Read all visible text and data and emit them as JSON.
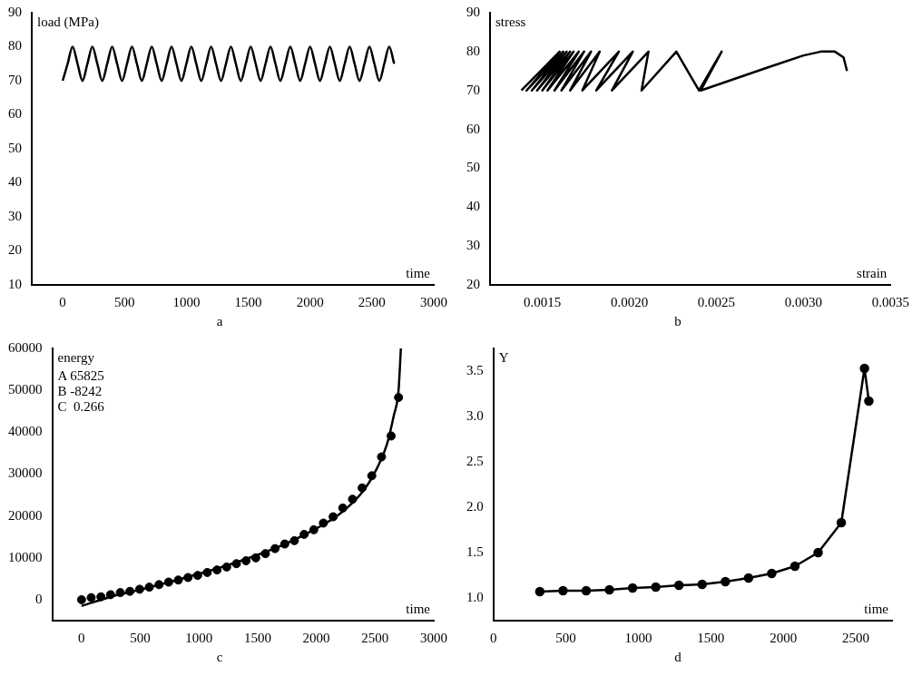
{
  "chart_data": [
    {
      "type": "line",
      "title": "a",
      "xlabel": "time",
      "ylabel": "load (MPa)",
      "color": "#000000",
      "x": [
        0,
        40,
        80,
        120,
        160,
        200,
        240,
        280,
        320,
        360,
        400,
        440,
        480,
        520,
        560,
        600,
        640,
        680,
        720,
        760,
        800,
        840,
        880,
        920,
        960,
        1000,
        1040,
        1080,
        1120,
        1160,
        1200,
        1240,
        1280,
        1320,
        1360,
        1400,
        1440,
        1480,
        1520,
        1560,
        1600,
        1640,
        1680,
        1720,
        1760,
        1800,
        1840,
        1880,
        1920,
        1960,
        2000,
        2040,
        2080,
        2120,
        2160,
        2200,
        2240,
        2280,
        2320,
        2360,
        2400,
        2440,
        2480,
        2520,
        2560,
        2600,
        2640,
        2680
      ],
      "values": [
        70,
        75,
        80,
        75,
        70,
        75,
        80,
        75,
        70,
        75,
        80,
        75,
        70,
        75,
        80,
        75,
        70,
        75,
        80,
        75,
        70,
        75,
        80,
        75,
        70,
        75,
        80,
        75,
        70,
        75,
        80,
        75,
        70,
        75,
        80,
        75,
        70,
        75,
        80,
        75,
        70,
        75,
        80,
        75,
        70,
        75,
        80,
        75,
        70,
        75,
        80,
        75,
        70,
        75,
        80,
        75,
        70,
        75,
        80,
        75,
        70,
        75,
        80,
        75,
        70,
        75,
        80,
        75
      ],
      "xlim": [
        -250,
        3000
      ],
      "xticks": [
        0,
        500,
        1000,
        1500,
        2000,
        2500,
        3000
      ],
      "ylim": [
        10,
        90
      ],
      "yticks": [
        10,
        20,
        30,
        40,
        50,
        60,
        70,
        80,
        90
      ]
    },
    {
      "type": "line",
      "title": "b",
      "xlabel": "strain",
      "ylabel": "stress",
      "color": "#000000",
      "x": [
        0.00138,
        0.0016,
        0.00141,
        0.00162,
        0.00144,
        0.00164,
        0.00147,
        0.00166,
        0.0015,
        0.00168,
        0.00153,
        0.00171,
        0.00157,
        0.00174,
        0.00161,
        0.00178,
        0.00166,
        0.00183,
        0.00173,
        0.00194,
        0.00181,
        0.00202,
        0.0019,
        0.00211,
        0.00207,
        0.00227,
        0.0024,
        0.00253,
        0.00241,
        0.0028,
        0.003,
        0.0031,
        0.00318,
        0.00323,
        0.00325
      ],
      "values": [
        70,
        80,
        70,
        80,
        70,
        80,
        70,
        80,
        70,
        80,
        70,
        80,
        70,
        80,
        70,
        80,
        70,
        80,
        70,
        80,
        70,
        80,
        70,
        80,
        70,
        80,
        70,
        80,
        70,
        76,
        79,
        80,
        80,
        78.5,
        75
      ],
      "xlim": [
        0.0012,
        0.0035
      ],
      "xticks": [
        {
          "value": 0.0015,
          "label": "0.0015"
        },
        {
          "value": 0.002,
          "label": "0.0020"
        },
        {
          "value": 0.0025,
          "label": "0.0025"
        },
        {
          "value": 0.003,
          "label": "0.0030"
        },
        {
          "value": 0.0035,
          "label": "0.0035"
        }
      ],
      "ylim": [
        20,
        90
      ],
      "yticks": [
        20,
        30,
        40,
        50,
        60,
        70,
        80,
        90
      ]
    },
    {
      "type": "scatter",
      "title": "c",
      "xlabel": "time",
      "ylabel": "energy",
      "annotations": [
        "A 65825",
        "B -8242",
        "C  0.266"
      ],
      "series": [
        {
          "marker": "circle",
          "color": "#000000",
          "x": [
            0,
            82,
            165,
            247,
            330,
            412,
            495,
            577,
            660,
            742,
            824,
            907,
            989,
            1071,
            1154,
            1236,
            1319,
            1401,
            1484,
            1566,
            1648,
            1731,
            1813,
            1896,
            1978,
            2060,
            2143,
            2225,
            2308,
            2390,
            2472,
            2555,
            2637,
            2700
          ],
          "values": [
            0,
            500,
            700,
            1200,
            1700,
            2000,
            2500,
            3000,
            3600,
            4200,
            4700,
            5300,
            5800,
            6500,
            7100,
            7800,
            8600,
            9300,
            10000,
            11000,
            12200,
            13300,
            14100,
            15600,
            16700,
            18300,
            19800,
            21900,
            24000,
            26700,
            29600,
            34100,
            39100,
            48300
          ]
        },
        {
          "type": "line",
          "color": "#000000",
          "x": [
            0,
            250,
            500,
            750,
            1000,
            1250,
            1500,
            1750,
            2000,
            2200,
            2400,
            2500,
            2600,
            2660,
            2700,
            2720
          ],
          "values": [
            -1500,
            700,
            2400,
            4200,
            6200,
            8300,
            10700,
            13500,
            17000,
            20500,
            26000,
            30500,
            37000,
            44000,
            50000,
            60000
          ]
        }
      ],
      "xlim": [
        -250,
        3000
      ],
      "xticks": [
        0,
        500,
        1000,
        1500,
        2000,
        2500,
        3000
      ],
      "ylim": [
        -5000,
        60000
      ],
      "yticks": [
        0,
        10000,
        20000,
        30000,
        40000,
        50000,
        60000
      ]
    },
    {
      "type": "line",
      "title": "d",
      "xlabel": "time",
      "ylabel": "Y",
      "color": "#000000",
      "marker": "circle",
      "x": [
        320,
        480,
        640,
        800,
        960,
        1120,
        1280,
        1440,
        1600,
        1760,
        1920,
        2080,
        2240,
        2400,
        2560,
        2590
      ],
      "values": [
        1.07,
        1.08,
        1.08,
        1.09,
        1.11,
        1.12,
        1.14,
        1.15,
        1.18,
        1.22,
        1.27,
        1.35,
        1.5,
        1.83,
        3.53,
        3.17
      ],
      "xlim": [
        0,
        2750
      ],
      "xticks": [
        0,
        500,
        1000,
        1500,
        2000,
        2500
      ],
      "ylim": [
        0.75,
        3.75
      ],
      "yticks": [
        {
          "value": 1,
          "label": "1.0"
        },
        {
          "value": 1.5,
          "label": "1.5"
        },
        {
          "value": 2,
          "label": "2.0"
        },
        {
          "value": 2.5,
          "label": "2.5"
        },
        {
          "value": 3,
          "label": "3.0"
        },
        {
          "value": 3.5,
          "label": "3.5"
        }
      ]
    }
  ]
}
